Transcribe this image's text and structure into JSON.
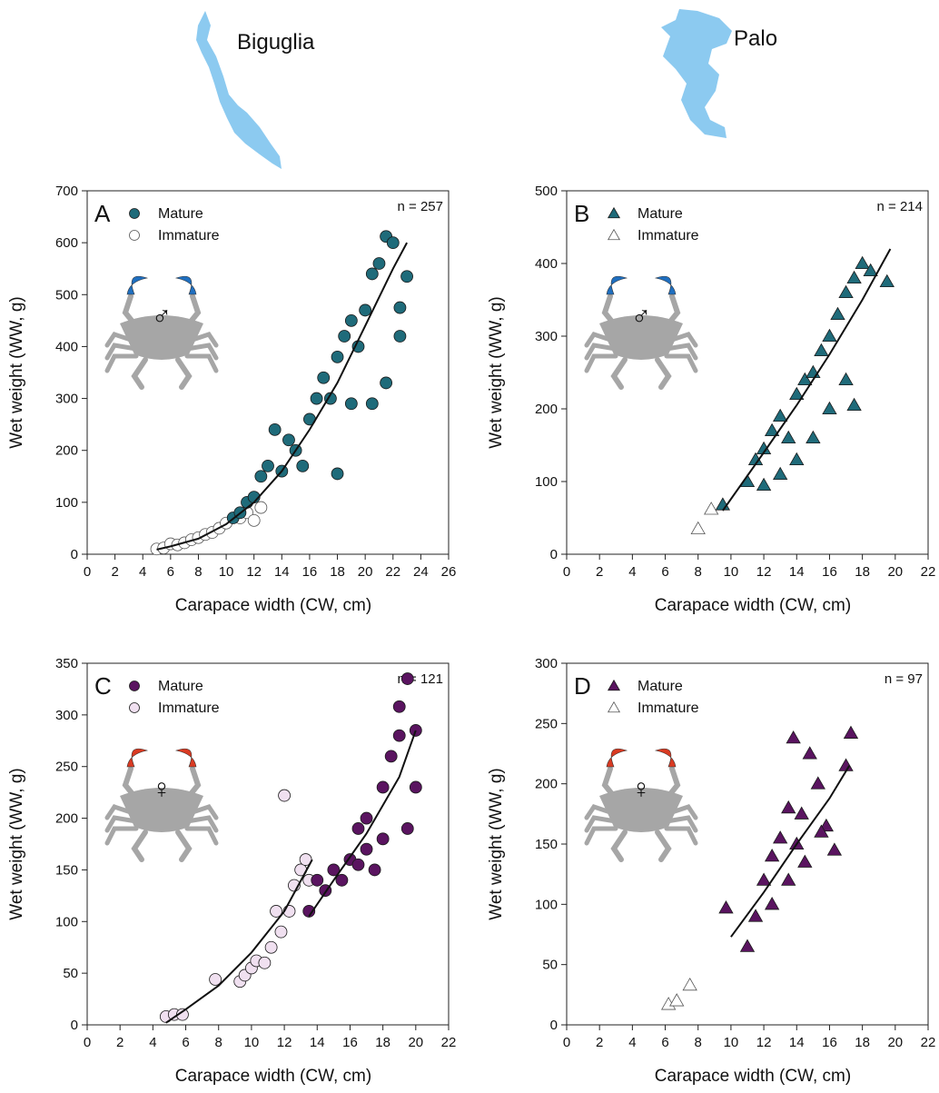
{
  "lakes": [
    {
      "name": "Biguglia",
      "color": "#8ccaf0"
    },
    {
      "name": "Palo",
      "color": "#8ccaf0"
    }
  ],
  "crab_icon": {
    "body_color": "#a6a6a6",
    "male_claw_color": "#1f6fc0",
    "female_claw_color": "#d93a22"
  },
  "chart_data": [
    {
      "panel": "A",
      "type": "scatter",
      "location": "Biguglia",
      "sex_symbol": "♂",
      "n_label": "n = 257",
      "xlabel": "Carapace width (CW, cm)",
      "ylabel": "Wet weight (WW, g)",
      "xlim": [
        0,
        26
      ],
      "ylim": [
        0,
        700
      ],
      "xticks": [
        0,
        2,
        4,
        6,
        8,
        10,
        12,
        14,
        16,
        18,
        20,
        22,
        24,
        26
      ],
      "yticks": [
        0,
        100,
        200,
        300,
        400,
        500,
        600,
        700
      ],
      "marker": "circle",
      "legend": "top-left",
      "series": [
        {
          "name": "Mature",
          "color": "#1f6b7a",
          "filled": true,
          "count": 215,
          "points": [
            [
              10.5,
              70
            ],
            [
              11,
              80
            ],
            [
              11.5,
              100
            ],
            [
              12,
              110
            ],
            [
              12.5,
              150
            ],
            [
              13,
              170
            ],
            [
              13.5,
              240
            ],
            [
              14,
              160
            ],
            [
              14.5,
              220
            ],
            [
              15,
              200
            ],
            [
              15.5,
              170
            ],
            [
              16,
              260
            ],
            [
              16.5,
              300
            ],
            [
              17,
              340
            ],
            [
              17.5,
              300
            ],
            [
              18,
              380
            ],
            [
              18.5,
              420
            ],
            [
              19,
              450
            ],
            [
              19.5,
              400
            ],
            [
              20,
              470
            ],
            [
              20.5,
              540
            ],
            [
              21,
              560
            ],
            [
              21.5,
              612
            ],
            [
              22,
              600
            ],
            [
              22.5,
              475
            ],
            [
              23,
              535
            ],
            [
              18,
              155
            ],
            [
              19,
              290
            ],
            [
              20.5,
              290
            ],
            [
              21.5,
              330
            ],
            [
              22.5,
              420
            ]
          ]
        },
        {
          "name": "Immature",
          "color": "#ffffff",
          "filled": false,
          "count": 42,
          "points": [
            [
              5,
              10
            ],
            [
              5.5,
              12
            ],
            [
              6,
              20
            ],
            [
              6.5,
              18
            ],
            [
              7,
              22
            ],
            [
              7.5,
              28
            ],
            [
              8,
              32
            ],
            [
              8.5,
              38
            ],
            [
              9,
              42
            ],
            [
              9.5,
              50
            ],
            [
              10,
              60
            ],
            [
              11,
              70
            ],
            [
              11.5,
              80
            ],
            [
              12,
              65
            ],
            [
              12.5,
              90
            ]
          ]
        }
      ],
      "fit_curve": {
        "x_range": [
          5,
          23
        ],
        "points": [
          [
            5,
            9
          ],
          [
            6,
            15
          ],
          [
            8,
            30
          ],
          [
            10,
            58
          ],
          [
            12,
            100
          ],
          [
            14,
            160
          ],
          [
            16,
            240
          ],
          [
            18,
            330
          ],
          [
            20,
            440
          ],
          [
            22,
            550
          ],
          [
            23,
            600
          ]
        ]
      }
    },
    {
      "panel": "B",
      "type": "scatter",
      "location": "Palo",
      "sex_symbol": "♂",
      "n_label": "n = 214",
      "xlabel": "Carapace width (CW, cm)",
      "ylabel": "Wet weight (WW, g)",
      "xlim": [
        0,
        22
      ],
      "ylim": [
        0,
        500
      ],
      "xticks": [
        0,
        2,
        4,
        6,
        8,
        10,
        12,
        14,
        16,
        18,
        20,
        22
      ],
      "yticks": [
        0,
        100,
        200,
        300,
        400,
        500
      ],
      "marker": "triangle",
      "legend": "top-left",
      "series": [
        {
          "name": "Mature",
          "color": "#1f6b7a",
          "filled": true,
          "count": 211,
          "points": [
            [
              9.5,
              68
            ],
            [
              11,
              100
            ],
            [
              11.5,
              130
            ],
            [
              12,
              145
            ],
            [
              12.5,
              170
            ],
            [
              13,
              190
            ],
            [
              13.5,
              160
            ],
            [
              14,
              220
            ],
            [
              14.5,
              240
            ],
            [
              15,
              250
            ],
            [
              15.5,
              280
            ],
            [
              16,
              300
            ],
            [
              16.5,
              330
            ],
            [
              17,
              360
            ],
            [
              17.5,
              380
            ],
            [
              18,
              400
            ],
            [
              18.5,
              390
            ],
            [
              19.5,
              375
            ],
            [
              12,
              95
            ],
            [
              13,
              110
            ],
            [
              14,
              130
            ],
            [
              15,
              160
            ],
            [
              16,
              200
            ],
            [
              17,
              240
            ],
            [
              17.5,
              205
            ]
          ]
        },
        {
          "name": "Immature",
          "color": "#ffffff",
          "filled": false,
          "count": 3,
          "points": [
            [
              8,
              35
            ],
            [
              8.8,
              62
            ]
          ]
        }
      ],
      "fit_curve": {
        "x_range": [
          9.5,
          19.7
        ],
        "points": [
          [
            9.5,
            60
          ],
          [
            12,
            140
          ],
          [
            14,
            205
          ],
          [
            16,
            275
          ],
          [
            18,
            350
          ],
          [
            19.7,
            420
          ]
        ]
      }
    },
    {
      "panel": "C",
      "type": "scatter",
      "location": "Biguglia",
      "sex_symbol": "♀",
      "n_label": "n = 121",
      "xlabel": "Carapace width (CW, cm)",
      "ylabel": "Wet weight (WW, g)",
      "xlim": [
        0,
        22
      ],
      "ylim": [
        0,
        350
      ],
      "xticks": [
        0,
        2,
        4,
        6,
        8,
        10,
        12,
        14,
        16,
        18,
        20,
        22
      ],
      "yticks": [
        0,
        50,
        100,
        150,
        200,
        250,
        300,
        350
      ],
      "marker": "circle",
      "legend": "top-left",
      "series": [
        {
          "name": "Mature",
          "color": "#5a1460",
          "filled": true,
          "count": 87,
          "points": [
            [
              13.5,
              110
            ],
            [
              14,
              140
            ],
            [
              14.5,
              130
            ],
            [
              15,
              150
            ],
            [
              15.5,
              140
            ],
            [
              16,
              160
            ],
            [
              16.5,
              190
            ],
            [
              17,
              200
            ],
            [
              17.5,
              150
            ],
            [
              18,
              230
            ],
            [
              18.5,
              260
            ],
            [
              19,
              308
            ],
            [
              19.5,
              335
            ],
            [
              20,
              285
            ],
            [
              19.5,
              190
            ],
            [
              18,
              180
            ],
            [
              17,
              170
            ],
            [
              16.5,
              155
            ],
            [
              19,
              280
            ],
            [
              20,
              230
            ]
          ]
        },
        {
          "name": "Immature",
          "color": "#f0e0f0",
          "filled": true,
          "count": 34,
          "points": [
            [
              4.8,
              8
            ],
            [
              5.3,
              10
            ],
            [
              5.8,
              10
            ],
            [
              7.8,
              44
            ],
            [
              9.3,
              42
            ],
            [
              9.6,
              48
            ],
            [
              10,
              55
            ],
            [
              10.3,
              62
            ],
            [
              10.8,
              60
            ],
            [
              11.2,
              75
            ],
            [
              11.5,
              110
            ],
            [
              11.8,
              90
            ],
            [
              12,
              222
            ],
            [
              12.3,
              110
            ],
            [
              12.6,
              135
            ],
            [
              13,
              150
            ],
            [
              13.3,
              160
            ],
            [
              13.5,
              140
            ]
          ]
        }
      ],
      "fit_curve": {
        "x_range": [
          4.8,
          20
        ],
        "points": [
          [
            4.8,
            2
          ],
          [
            6,
            15
          ],
          [
            8,
            38
          ],
          [
            10,
            70
          ],
          [
            12,
            110
          ],
          [
            13.7,
            160
          ]
        ]
      },
      "fit_curve_2": {
        "points": [
          [
            13.5,
            105
          ],
          [
            15,
            140
          ],
          [
            17,
            185
          ],
          [
            19,
            240
          ],
          [
            20,
            285
          ]
        ]
      }
    },
    {
      "panel": "D",
      "type": "scatter",
      "location": "Palo",
      "sex_symbol": "♀",
      "n_label": "n = 97",
      "xlabel": "Carapace width (CW, cm)",
      "ylabel": "Wet weight (WW, g)",
      "xlim": [
        0,
        22
      ],
      "ylim": [
        0,
        300
      ],
      "xticks": [
        0,
        2,
        4,
        6,
        8,
        10,
        12,
        14,
        16,
        18,
        20,
        22
      ],
      "yticks": [
        0,
        50,
        100,
        150,
        200,
        250,
        300
      ],
      "marker": "triangle",
      "legend": "top-left",
      "series": [
        {
          "name": "Mature",
          "color": "#5a1460",
          "filled": true,
          "count": 94,
          "points": [
            [
              9.7,
              97
            ],
            [
              11,
              65
            ],
            [
              11.5,
              90
            ],
            [
              12,
              120
            ],
            [
              12.5,
              140
            ],
            [
              13,
              155
            ],
            [
              13.5,
              180
            ],
            [
              13.8,
              238
            ],
            [
              14,
              150
            ],
            [
              14.3,
              175
            ],
            [
              14.8,
              225
            ],
            [
              15.3,
              200
            ],
            [
              15.8,
              165
            ],
            [
              16.3,
              145
            ],
            [
              17,
              215
            ],
            [
              17.3,
              242
            ],
            [
              12.5,
              100
            ],
            [
              13.5,
              120
            ],
            [
              14.5,
              135
            ],
            [
              15.5,
              160
            ]
          ]
        },
        {
          "name": "Immature",
          "color": "#ffffff",
          "filled": false,
          "count": 3,
          "points": [
            [
              6.2,
              17
            ],
            [
              6.7,
              20
            ],
            [
              7.5,
              33
            ]
          ]
        }
      ],
      "fit_curve": {
        "x_range": [
          10,
          17.2
        ],
        "points": [
          [
            10,
            73
          ],
          [
            12,
            110
          ],
          [
            14,
            150
          ],
          [
            16,
            188
          ],
          [
            17.2,
            215
          ]
        ]
      }
    }
  ]
}
